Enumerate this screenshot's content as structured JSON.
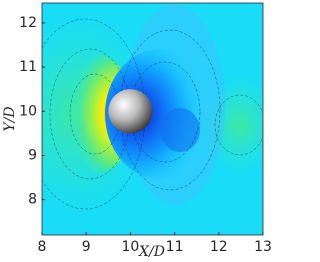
{
  "chart_data": {
    "type": "contour",
    "xlabel": "X/D",
    "ylabel": "Y/D",
    "xlim": [
      8,
      13
    ],
    "xticks": [
      8,
      9,
      10,
      11,
      12,
      13
    ],
    "ylim": [
      7.2,
      12.45
    ],
    "yticks": [
      8,
      9,
      10,
      11,
      12
    ],
    "sphere_center": [
      10,
      10
    ],
    "sphere_diameter": 1
  }
}
